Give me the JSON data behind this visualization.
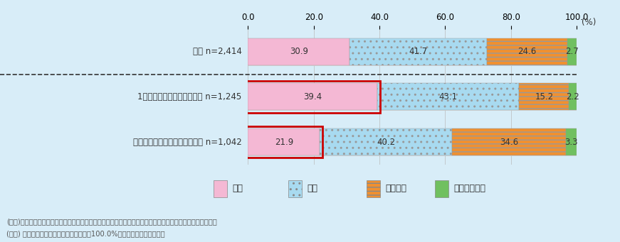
{
  "categories": [
    "全体 n=2,414",
    "1年間に活動または参加した n=1,245",
    "活動または参加したものはない n=1,042"
  ],
  "series_keys": [
    "良い",
    "普通",
    "良くない",
    "不明・無回答"
  ],
  "series": {
    "良い": [
      30.9,
      39.4,
      21.9
    ],
    "普通": [
      41.7,
      43.1,
      40.2
    ],
    "良くない": [
      24.6,
      15.2,
      34.6
    ],
    "不明・無回答": [
      2.7,
      2.2,
      3.3
    ]
  },
  "colors": {
    "良い": "#f4b8d4",
    "普通": "#a8daf0",
    "良くない": "#f09030",
    "不明・無回答": "#70c060"
  },
  "hatches": {
    "良い": "",
    "普通": "..",
    "良くない": "---",
    "不明・無回答": ""
  },
  "xlim": [
    0,
    100
  ],
  "xticks": [
    0.0,
    20.0,
    40.0,
    60.0,
    80.0,
    100.0
  ],
  "background_color": "#d8edf8",
  "bar_background": "#ffffff",
  "note1": "(注１)「良い」は「良い」と「まあ良い」の合計、「良くない」は「あまり良くない」と「良くない」の合計",
  "note2": "(注２) 四捨五入の関係で、足し合わせても100.0%にならない場合がある。",
  "boxed_rows": [
    1,
    2
  ]
}
